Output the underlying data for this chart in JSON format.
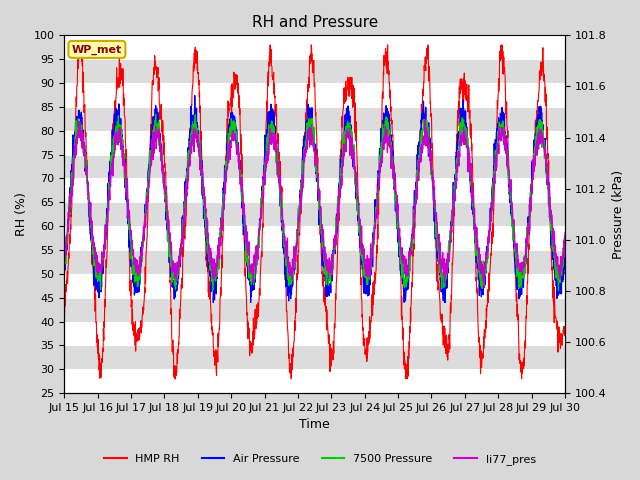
{
  "title": "RH and Pressure",
  "xlabel": "Time",
  "ylabel_left": "RH (%)",
  "ylabel_right": "Pressure (kPa)",
  "ylim_left": [
    25,
    100
  ],
  "ylim_right": [
    100.4,
    101.8
  ],
  "xtick_labels": [
    "Jul 15",
    "Jul 16",
    "Jul 17",
    "Jul 18",
    "Jul 19",
    "Jul 20",
    "Jul 21",
    "Jul 22",
    "Jul 23",
    "Jul 24",
    "Jul 25",
    "Jul 26",
    "Jul 27",
    "Jul 28",
    "Jul 29",
    "Jul 30"
  ],
  "station_label": "WP_met",
  "colors": {
    "HMP_RH": "#FF0000",
    "Air_Pressure": "#0000FF",
    "Pressure_7500": "#00CC00",
    "li77_pres": "#CC00CC"
  },
  "legend_labels": [
    "HMP RH",
    "Air Pressure",
    "7500 Pressure",
    "li77_pres"
  ],
  "background_color": "#D8D8D8",
  "plot_bg_light": "#DCDCDC",
  "plot_bg_dark": "#C8C8C8",
  "grid_color": "#FFFFFF",
  "n_points": 2000,
  "title_fontsize": 11,
  "axis_label_fontsize": 9,
  "tick_fontsize": 8
}
